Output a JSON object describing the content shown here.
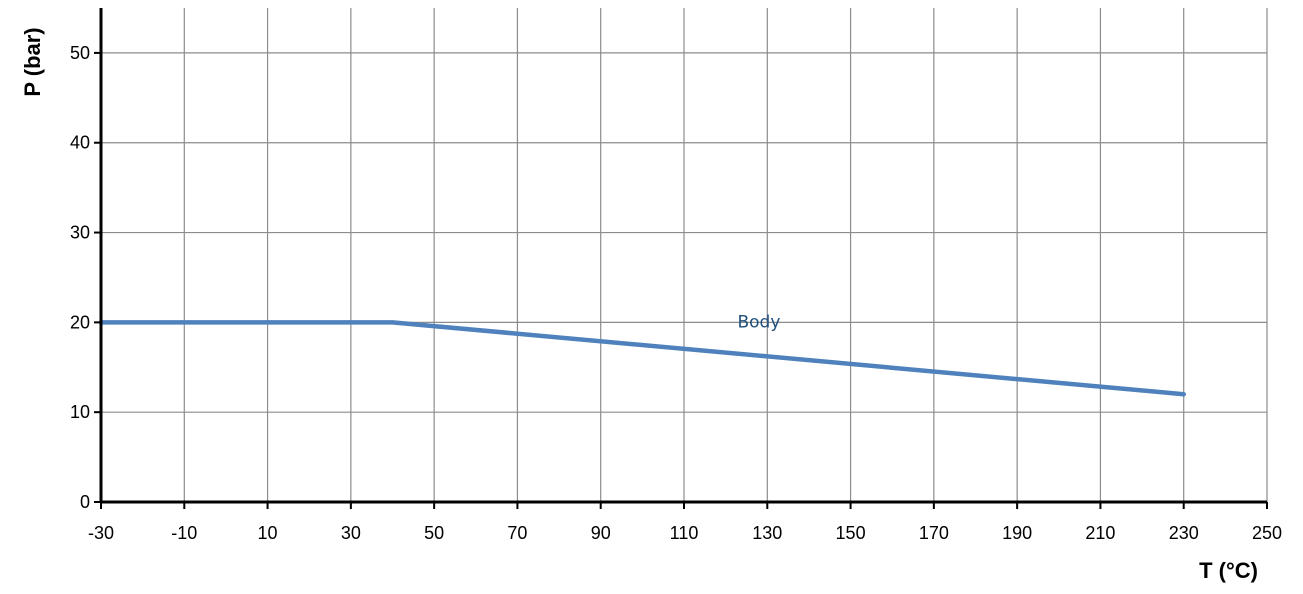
{
  "chart_data": {
    "type": "line",
    "title": "",
    "xlabel": "T (°C)",
    "ylabel": "P (bar)",
    "xlim": [
      -30,
      250
    ],
    "ylim": [
      0,
      55
    ],
    "x_ticks": [
      -30,
      -10,
      10,
      30,
      50,
      70,
      90,
      110,
      130,
      150,
      170,
      190,
      210,
      230,
      250
    ],
    "y_ticks": [
      0,
      10,
      20,
      30,
      40,
      50
    ],
    "grid": true,
    "colors": {
      "series": "#4f81bd",
      "label": "#1f4e79",
      "grid": "#8c8c8c",
      "axis": "#000000"
    },
    "series": [
      {
        "name": "Body",
        "x": [
          -30,
          40,
          230
        ],
        "y": [
          20,
          20,
          12
        ]
      }
    ],
    "annotations": [
      {
        "text": "Body",
        "x": 128,
        "y": 20
      }
    ]
  }
}
